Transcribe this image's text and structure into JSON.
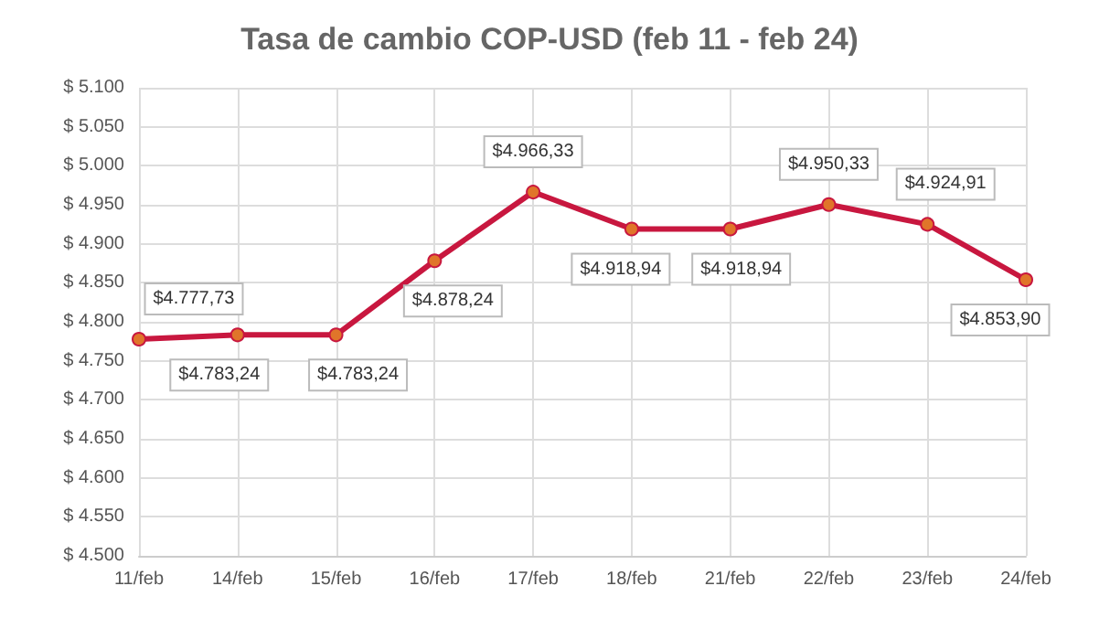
{
  "chart_data": {
    "type": "line",
    "title": "Tasa de cambio COP-USD (feb 11 - feb 24)",
    "categories": [
      "11/feb",
      "14/feb",
      "15/feb",
      "16/feb",
      "17/feb",
      "18/feb",
      "21/feb",
      "22/feb",
      "23/feb",
      "24/feb"
    ],
    "series": [
      {
        "color": "#c8173f",
        "values": [
          4777.73,
          4783.24,
          4783.24,
          4878.24,
          4966.33,
          4918.94,
          4918.94,
          4950.33,
          4924.91,
          4853.9
        ],
        "value_labels": [
          "$4.777,73",
          "$4.783,24",
          "$4.783,24",
          "$4.878,24",
          "$4.966,33",
          "$4.918,94",
          "$4.918,94",
          "$4.950,33",
          "$4.924,91",
          "$4.853,90"
        ]
      }
    ],
    "ylim": [
      4500,
      5100
    ],
    "yticks": [
      {
        "value": 4500,
        "label": "$ 4.500"
      },
      {
        "value": 4550,
        "label": "$ 4.550"
      },
      {
        "value": 4600,
        "label": "$ 4.600"
      },
      {
        "value": 4650,
        "label": "$ 4.650"
      },
      {
        "value": 4700,
        "label": "$ 4.700"
      },
      {
        "value": 4750,
        "label": "$ 4.750"
      },
      {
        "value": 4800,
        "label": "$ 4.800"
      },
      {
        "value": 4850,
        "label": "$ 4.850"
      },
      {
        "value": 4900,
        "label": "$ 4.900"
      },
      {
        "value": 4950,
        "label": "$ 4.950"
      },
      {
        "value": 5000,
        "label": "$ 5.000"
      },
      {
        "value": 5050,
        "label": "$ 5.050"
      },
      {
        "value": 5100,
        "label": "$ 5.100"
      }
    ],
    "grid": true,
    "marker": "circle",
    "line_style": "solid"
  }
}
